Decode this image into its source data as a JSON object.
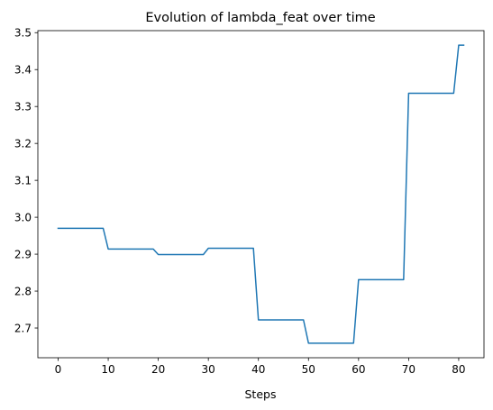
{
  "chart_data": {
    "type": "line",
    "title": "Evolution of lambda_feat over time",
    "xlabel": "Steps",
    "ylabel": "",
    "xlim": [
      -4.05,
      85.05
    ],
    "ylim": [
      2.6195,
      3.5055
    ],
    "grid": false,
    "legend": "none",
    "x_ticks": [
      0,
      10,
      20,
      30,
      40,
      50,
      60,
      70,
      80
    ],
    "x_tick_labels": [
      "0",
      "10",
      "20",
      "30",
      "40",
      "50",
      "60",
      "70",
      "80"
    ],
    "y_ticks": [
      2.7,
      2.8,
      2.9,
      3.0,
      3.1,
      3.2,
      3.3,
      3.4,
      3.5
    ],
    "y_tick_labels": [
      "2.7",
      "2.8",
      "2.9",
      "3.0",
      "3.1",
      "3.2",
      "3.3",
      "3.4",
      "3.5"
    ],
    "series": [
      {
        "color": "#1f77b4",
        "x": [
          0,
          9,
          10,
          19,
          20,
          29,
          30,
          39,
          40,
          49,
          50,
          59,
          60,
          69,
          70,
          79,
          80,
          81
        ],
        "y": [
          2.97,
          2.97,
          2.914,
          2.914,
          2.899,
          2.899,
          2.916,
          2.916,
          2.722,
          2.722,
          2.659,
          2.659,
          2.831,
          2.831,
          3.336,
          3.336,
          3.466,
          3.466
        ]
      }
    ]
  }
}
